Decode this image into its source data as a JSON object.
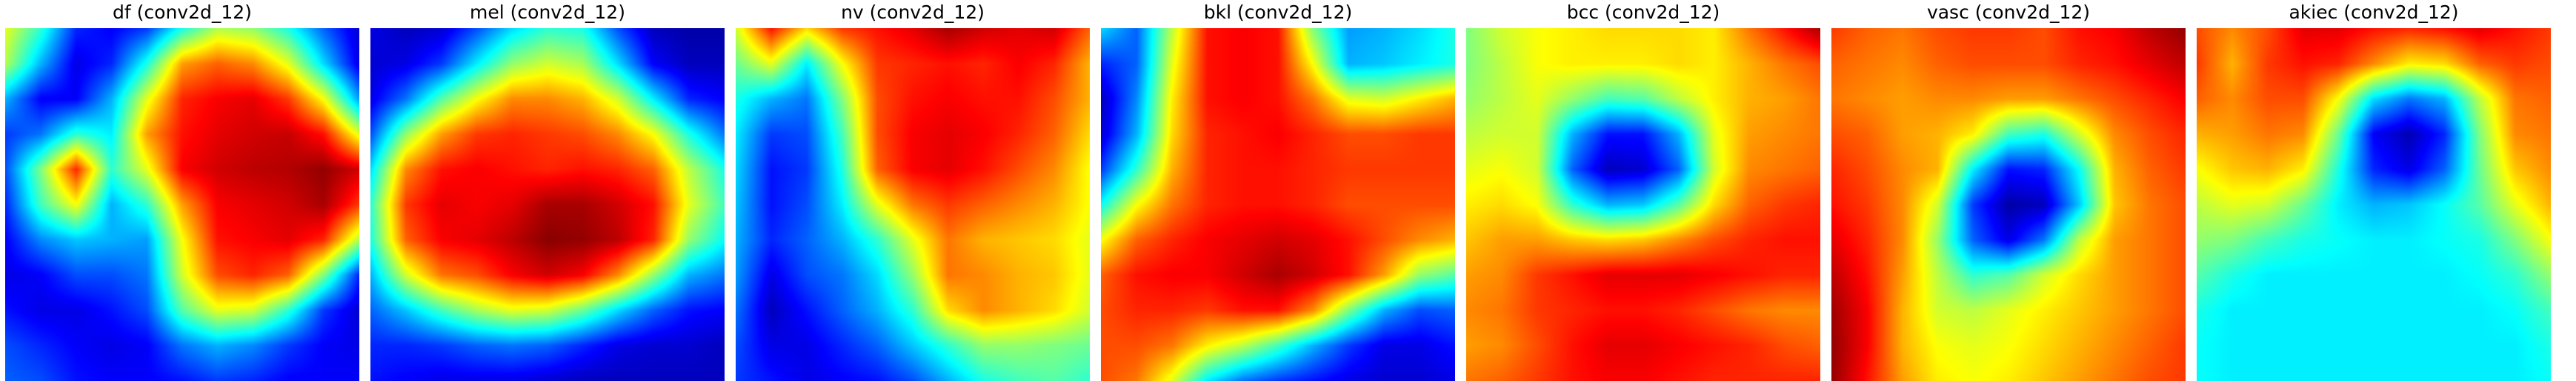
{
  "chart_data": [
    {
      "type": "heatmap",
      "title": "df (conv2d_12)",
      "colormap": "jet",
      "grid": false,
      "axes": "off",
      "values": [
        [
          0.6,
          0.42,
          0.16,
          0.12,
          0.18,
          0.4,
          0.55,
          0.52,
          0.4,
          0.22,
          0.08
        ],
        [
          0.55,
          0.3,
          0.1,
          0.16,
          0.4,
          0.72,
          0.78,
          0.74,
          0.6,
          0.34,
          0.1
        ],
        [
          0.3,
          0.12,
          0.12,
          0.3,
          0.6,
          0.84,
          0.88,
          0.9,
          0.82,
          0.62,
          0.28
        ],
        [
          0.18,
          0.24,
          0.42,
          0.36,
          0.72,
          0.86,
          0.9,
          0.92,
          0.93,
          0.86,
          0.6
        ],
        [
          0.2,
          0.5,
          0.84,
          0.42,
          0.6,
          0.88,
          0.92,
          0.94,
          0.95,
          0.98,
          0.92
        ],
        [
          0.16,
          0.44,
          0.62,
          0.3,
          0.42,
          0.72,
          0.88,
          0.9,
          0.92,
          0.96,
          0.82
        ],
        [
          0.12,
          0.26,
          0.32,
          0.3,
          0.28,
          0.62,
          0.86,
          0.88,
          0.9,
          0.84,
          0.55
        ],
        [
          0.1,
          0.12,
          0.2,
          0.2,
          0.24,
          0.58,
          0.8,
          0.84,
          0.78,
          0.5,
          0.16
        ],
        [
          0.14,
          0.1,
          0.1,
          0.14,
          0.2,
          0.46,
          0.6,
          0.58,
          0.42,
          0.18,
          0.08
        ],
        [
          0.2,
          0.16,
          0.12,
          0.1,
          0.12,
          0.24,
          0.3,
          0.26,
          0.18,
          0.12,
          0.1
        ],
        [
          0.22,
          0.2,
          0.14,
          0.12,
          0.12,
          0.14,
          0.18,
          0.16,
          0.12,
          0.12,
          0.12
        ]
      ]
    },
    {
      "type": "heatmap",
      "title": "mel (conv2d_12)",
      "colormap": "jet",
      "grid": false,
      "axes": "off",
      "values": [
        [
          0.1,
          0.06,
          0.08,
          0.2,
          0.34,
          0.42,
          0.4,
          0.2,
          0.06,
          0.04,
          0.04
        ],
        [
          0.08,
          0.1,
          0.18,
          0.36,
          0.52,
          0.58,
          0.54,
          0.34,
          0.12,
          0.06,
          0.06
        ],
        [
          0.1,
          0.24,
          0.46,
          0.62,
          0.74,
          0.74,
          0.7,
          0.58,
          0.36,
          0.16,
          0.12
        ],
        [
          0.2,
          0.52,
          0.72,
          0.82,
          0.84,
          0.82,
          0.8,
          0.74,
          0.62,
          0.4,
          0.24
        ],
        [
          0.34,
          0.74,
          0.86,
          0.88,
          0.86,
          0.84,
          0.86,
          0.84,
          0.78,
          0.56,
          0.4
        ],
        [
          0.42,
          0.82,
          0.9,
          0.88,
          0.9,
          0.96,
          0.96,
          0.92,
          0.86,
          0.6,
          0.44
        ],
        [
          0.4,
          0.78,
          0.88,
          0.9,
          0.94,
          0.99,
          0.98,
          0.94,
          0.84,
          0.52,
          0.38
        ],
        [
          0.3,
          0.58,
          0.76,
          0.8,
          0.88,
          0.92,
          0.88,
          0.74,
          0.52,
          0.3,
          0.24
        ],
        [
          0.22,
          0.32,
          0.44,
          0.54,
          0.6,
          0.58,
          0.48,
          0.34,
          0.22,
          0.14,
          0.12
        ],
        [
          0.16,
          0.16,
          0.18,
          0.22,
          0.24,
          0.22,
          0.16,
          0.1,
          0.08,
          0.08,
          0.06
        ],
        [
          0.14,
          0.12,
          0.1,
          0.1,
          0.1,
          0.08,
          0.06,
          0.06,
          0.06,
          0.06,
          0.06
        ]
      ]
    },
    {
      "type": "heatmap",
      "title": "nv (conv2d_12)",
      "colormap": "jet",
      "grid": false,
      "axes": "off",
      "values": [
        [
          0.58,
          0.86,
          0.66,
          0.82,
          0.86,
          0.9,
          0.96,
          0.92,
          0.9,
          0.92,
          0.78
        ],
        [
          0.48,
          0.6,
          0.36,
          0.62,
          0.82,
          0.84,
          0.86,
          0.84,
          0.88,
          0.84,
          0.7
        ],
        [
          0.4,
          0.3,
          0.24,
          0.5,
          0.8,
          0.86,
          0.88,
          0.86,
          0.86,
          0.8,
          0.7
        ],
        [
          0.36,
          0.18,
          0.2,
          0.44,
          0.8,
          0.88,
          0.9,
          0.88,
          0.84,
          0.78,
          0.66
        ],
        [
          0.34,
          0.14,
          0.18,
          0.4,
          0.78,
          0.88,
          0.9,
          0.86,
          0.8,
          0.74,
          0.62
        ],
        [
          0.32,
          0.14,
          0.2,
          0.36,
          0.6,
          0.76,
          0.82,
          0.78,
          0.74,
          0.7,
          0.62
        ],
        [
          0.3,
          0.16,
          0.22,
          0.3,
          0.42,
          0.6,
          0.76,
          0.7,
          0.68,
          0.66,
          0.6
        ],
        [
          0.28,
          0.1,
          0.2,
          0.24,
          0.34,
          0.52,
          0.76,
          0.74,
          0.7,
          0.68,
          0.6
        ],
        [
          0.24,
          0.06,
          0.14,
          0.22,
          0.3,
          0.42,
          0.66,
          0.74,
          0.7,
          0.66,
          0.58
        ],
        [
          0.2,
          0.1,
          0.1,
          0.16,
          0.22,
          0.32,
          0.42,
          0.52,
          0.52,
          0.5,
          0.48
        ],
        [
          0.18,
          0.14,
          0.1,
          0.12,
          0.14,
          0.2,
          0.3,
          0.4,
          0.44,
          0.46,
          0.42
        ]
      ]
    },
    {
      "type": "heatmap",
      "title": "bkl (conv2d_12)",
      "colormap": "jet",
      "grid": false,
      "axes": "off",
      "values": [
        [
          0.34,
          0.22,
          0.56,
          0.86,
          0.88,
          0.86,
          0.5,
          0.28,
          0.3,
          0.34,
          0.4
        ],
        [
          0.16,
          0.22,
          0.6,
          0.86,
          0.88,
          0.86,
          0.62,
          0.3,
          0.32,
          0.36,
          0.4
        ],
        [
          0.06,
          0.26,
          0.64,
          0.86,
          0.88,
          0.86,
          0.76,
          0.6,
          0.58,
          0.64,
          0.7
        ],
        [
          0.08,
          0.3,
          0.66,
          0.84,
          0.86,
          0.88,
          0.84,
          0.8,
          0.8,
          0.82,
          0.82
        ],
        [
          0.18,
          0.42,
          0.7,
          0.84,
          0.86,
          0.86,
          0.84,
          0.82,
          0.82,
          0.82,
          0.82
        ],
        [
          0.38,
          0.62,
          0.76,
          0.84,
          0.86,
          0.86,
          0.84,
          0.8,
          0.8,
          0.8,
          0.8
        ],
        [
          0.62,
          0.78,
          0.84,
          0.88,
          0.9,
          0.92,
          0.9,
          0.86,
          0.8,
          0.74,
          0.7
        ],
        [
          0.78,
          0.86,
          0.88,
          0.88,
          0.92,
          0.96,
          0.92,
          0.86,
          0.72,
          0.52,
          0.46
        ],
        [
          0.8,
          0.84,
          0.84,
          0.82,
          0.86,
          0.86,
          0.74,
          0.5,
          0.3,
          0.2,
          0.22
        ],
        [
          0.8,
          0.8,
          0.76,
          0.64,
          0.56,
          0.44,
          0.3,
          0.18,
          0.1,
          0.1,
          0.14
        ],
        [
          0.8,
          0.76,
          0.6,
          0.36,
          0.24,
          0.18,
          0.14,
          0.1,
          0.08,
          0.08,
          0.1
        ]
      ]
    },
    {
      "type": "heatmap",
      "title": "bcc (conv2d_12)",
      "colormap": "jet",
      "grid": false,
      "axes": "off",
      "values": [
        [
          0.5,
          0.58,
          0.62,
          0.64,
          0.66,
          0.66,
          0.66,
          0.64,
          0.76,
          0.86,
          0.96
        ],
        [
          0.5,
          0.56,
          0.62,
          0.64,
          0.64,
          0.64,
          0.66,
          0.64,
          0.7,
          0.76,
          0.8
        ],
        [
          0.52,
          0.56,
          0.6,
          0.52,
          0.44,
          0.46,
          0.56,
          0.64,
          0.7,
          0.72,
          0.76
        ],
        [
          0.56,
          0.58,
          0.58,
          0.3,
          0.14,
          0.14,
          0.3,
          0.6,
          0.72,
          0.74,
          0.76
        ],
        [
          0.6,
          0.62,
          0.58,
          0.22,
          0.06,
          0.08,
          0.22,
          0.58,
          0.74,
          0.76,
          0.78
        ],
        [
          0.64,
          0.66,
          0.62,
          0.42,
          0.3,
          0.32,
          0.46,
          0.66,
          0.78,
          0.82,
          0.84
        ],
        [
          0.68,
          0.72,
          0.72,
          0.68,
          0.66,
          0.68,
          0.74,
          0.8,
          0.84,
          0.86,
          0.86
        ],
        [
          0.72,
          0.74,
          0.82,
          0.86,
          0.9,
          0.9,
          0.9,
          0.88,
          0.86,
          0.84,
          0.84
        ],
        [
          0.74,
          0.76,
          0.82,
          0.84,
          0.86,
          0.86,
          0.84,
          0.8,
          0.76,
          0.74,
          0.74
        ],
        [
          0.72,
          0.74,
          0.8,
          0.86,
          0.9,
          0.9,
          0.88,
          0.86,
          0.84,
          0.8,
          0.78
        ],
        [
          0.76,
          0.78,
          0.82,
          0.86,
          0.88,
          0.88,
          0.86,
          0.84,
          0.84,
          0.84,
          0.84
        ]
      ]
    },
    {
      "type": "heatmap",
      "title": "vasc (conv2d_12)",
      "colormap": "jet",
      "grid": false,
      "axes": "off",
      "values": [
        [
          0.82,
          0.78,
          0.76,
          0.8,
          0.82,
          0.82,
          0.8,
          0.86,
          0.88,
          0.94,
          0.98
        ],
        [
          0.78,
          0.76,
          0.74,
          0.78,
          0.8,
          0.8,
          0.8,
          0.84,
          0.86,
          0.9,
          0.94
        ],
        [
          0.76,
          0.74,
          0.72,
          0.74,
          0.74,
          0.72,
          0.72,
          0.76,
          0.8,
          0.84,
          0.88
        ],
        [
          0.8,
          0.78,
          0.72,
          0.7,
          0.64,
          0.44,
          0.4,
          0.58,
          0.74,
          0.8,
          0.84
        ],
        [
          0.84,
          0.8,
          0.74,
          0.7,
          0.36,
          0.14,
          0.16,
          0.38,
          0.7,
          0.78,
          0.82
        ],
        [
          0.86,
          0.82,
          0.74,
          0.58,
          0.18,
          0.04,
          0.06,
          0.32,
          0.68,
          0.76,
          0.8
        ],
        [
          0.9,
          0.84,
          0.74,
          0.52,
          0.22,
          0.1,
          0.24,
          0.56,
          0.72,
          0.76,
          0.8
        ],
        [
          0.94,
          0.86,
          0.72,
          0.56,
          0.42,
          0.46,
          0.58,
          0.66,
          0.72,
          0.76,
          0.8
        ],
        [
          0.97,
          0.88,
          0.7,
          0.58,
          0.56,
          0.6,
          0.64,
          0.68,
          0.72,
          0.76,
          0.8
        ],
        [
          0.98,
          0.88,
          0.7,
          0.62,
          0.6,
          0.62,
          0.66,
          0.7,
          0.74,
          0.78,
          0.82
        ],
        [
          0.98,
          0.86,
          0.72,
          0.64,
          0.62,
          0.64,
          0.68,
          0.72,
          0.76,
          0.8,
          0.82
        ]
      ]
    },
    {
      "type": "heatmap",
      "title": "akiec (conv2d_12)",
      "colormap": "jet",
      "grid": false,
      "axes": "off",
      "values": [
        [
          0.8,
          0.74,
          0.8,
          0.9,
          0.9,
          0.86,
          0.84,
          0.86,
          0.9,
          0.86,
          0.82
        ],
        [
          0.82,
          0.7,
          0.82,
          0.86,
          0.84,
          0.74,
          0.64,
          0.66,
          0.78,
          0.82,
          0.8
        ],
        [
          0.78,
          0.74,
          0.8,
          0.8,
          0.62,
          0.34,
          0.24,
          0.3,
          0.56,
          0.76,
          0.78
        ],
        [
          0.7,
          0.72,
          0.76,
          0.74,
          0.48,
          0.12,
          0.05,
          0.16,
          0.5,
          0.74,
          0.76
        ],
        [
          0.62,
          0.68,
          0.7,
          0.64,
          0.4,
          0.16,
          0.1,
          0.22,
          0.48,
          0.68,
          0.74
        ],
        [
          0.56,
          0.6,
          0.58,
          0.48,
          0.36,
          0.3,
          0.32,
          0.38,
          0.46,
          0.6,
          0.7
        ],
        [
          0.52,
          0.5,
          0.44,
          0.4,
          0.38,
          0.36,
          0.36,
          0.38,
          0.4,
          0.5,
          0.62
        ],
        [
          0.46,
          0.4,
          0.36,
          0.36,
          0.36,
          0.36,
          0.36,
          0.36,
          0.38,
          0.42,
          0.52
        ],
        [
          0.4,
          0.36,
          0.36,
          0.36,
          0.36,
          0.36,
          0.36,
          0.36,
          0.36,
          0.38,
          0.44
        ],
        [
          0.38,
          0.36,
          0.36,
          0.36,
          0.36,
          0.36,
          0.36,
          0.36,
          0.36,
          0.36,
          0.4
        ],
        [
          0.38,
          0.36,
          0.36,
          0.36,
          0.36,
          0.36,
          0.36,
          0.36,
          0.36,
          0.36,
          0.38
        ]
      ]
    }
  ]
}
